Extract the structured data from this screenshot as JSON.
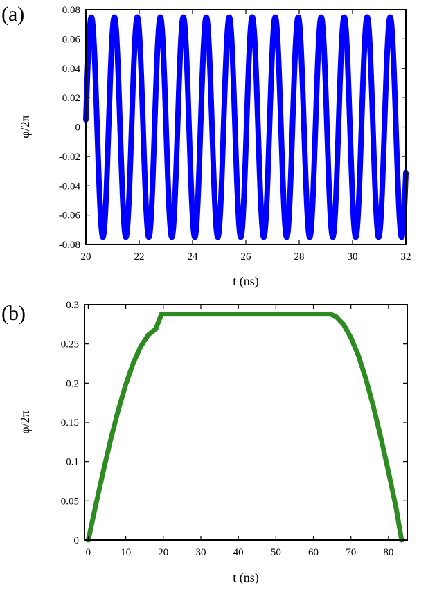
{
  "chart_data": [
    {
      "type": "line",
      "panel_label": "(a)",
      "xlabel": "t (ns)",
      "ylabel": "φ/2π",
      "xlim": [
        20,
        32
      ],
      "ylim": [
        -0.08,
        0.08
      ],
      "x_ticks": [
        20,
        22,
        24,
        26,
        28,
        30,
        32
      ],
      "y_ticks": [
        -0.08,
        -0.06,
        -0.04,
        -0.02,
        0,
        0.02,
        0.04,
        0.06,
        0.08
      ],
      "x_tick_labels": [
        "20",
        "22",
        "24",
        "26",
        "28",
        "30",
        "32"
      ],
      "y_tick_labels": [
        "-0.08",
        "-0.06",
        "-0.04",
        "-0.02",
        "0",
        "0.02",
        "0.04",
        "0.06",
        "0.08"
      ],
      "grid": false,
      "series": [
        {
          "color": "#0000ff",
          "function": "sinusoid",
          "amplitude": 0.075,
          "period_ns": 0.862,
          "value_at_x_min": 0.005,
          "x": [
            20,
            32
          ]
        }
      ]
    },
    {
      "type": "line",
      "panel_label": "(b)",
      "xlabel": "t (ns)",
      "ylabel": "φ/2π",
      "xlim": [
        -1,
        85
      ],
      "ylim": [
        0,
        0.3
      ],
      "x_ticks": [
        0,
        10,
        20,
        30,
        40,
        50,
        60,
        70,
        80
      ],
      "y_ticks": [
        0,
        0.05,
        0.1,
        0.15,
        0.2,
        0.25,
        0.3
      ],
      "x_tick_labels": [
        "0",
        "10",
        "20",
        "30",
        "40",
        "50",
        "60",
        "70",
        "80"
      ],
      "y_tick_labels": [
        "0",
        "0.05",
        "0.1",
        "0.15",
        "0.2",
        "0.25",
        "0.3"
      ],
      "grid": false,
      "series": [
        {
          "color": "#2e8b22",
          "x": [
            0,
            2,
            4,
            6,
            8,
            10,
            12,
            14,
            16,
            18,
            19.5,
            21,
            25,
            30,
            35,
            40,
            45,
            50,
            55,
            60,
            63,
            64.5,
            66,
            68,
            70,
            72,
            74,
            76,
            78,
            80,
            82,
            83.5
          ],
          "y": [
            0,
            0.0445,
            0.0877,
            0.1284,
            0.1656,
            0.1983,
            0.2257,
            0.2469,
            0.2615,
            0.269,
            0.288,
            0.288,
            0.288,
            0.288,
            0.288,
            0.288,
            0.288,
            0.288,
            0.288,
            0.288,
            0.288,
            0.288,
            0.285,
            0.275,
            0.258,
            0.235,
            0.205,
            0.17,
            0.13,
            0.087,
            0.042,
            0
          ]
        }
      ]
    }
  ]
}
